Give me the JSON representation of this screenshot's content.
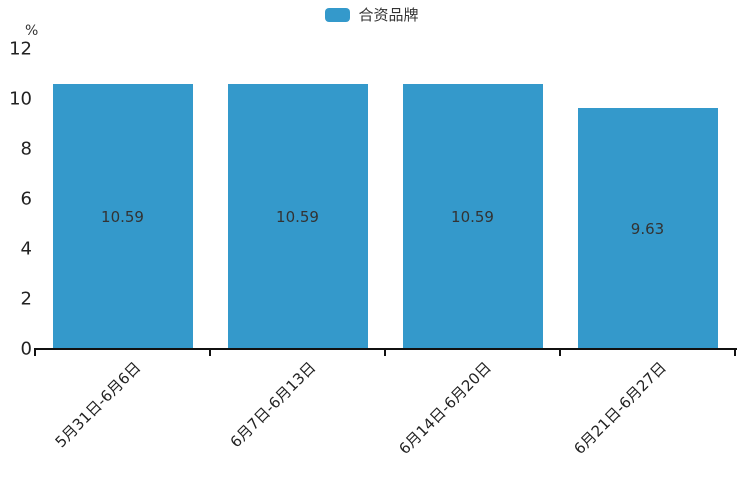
{
  "legend": {
    "items": [
      {
        "label": "合资品牌",
        "color": "#3499cb"
      }
    ],
    "position": "top-center"
  },
  "chart_data": {
    "type": "bar",
    "series_name": "合资品牌",
    "categories": [
      "5月31日-6月6日",
      "6月7日-6月13日",
      "6月14日-6月20日",
      "6月21日-6月27日"
    ],
    "values": [
      10.59,
      10.59,
      10.59,
      9.63
    ],
    "value_labels": [
      "10.59",
      "10.59",
      "10.59",
      "9.63"
    ],
    "title": "",
    "xlabel": "",
    "ylabel": "%",
    "ylim": [
      0,
      12
    ],
    "yticks": [
      0,
      2,
      4,
      6,
      8,
      10,
      12
    ],
    "grid": false,
    "legend_position": "top-center",
    "bar_color": "#3499cb",
    "value_label_color": "#333333",
    "axis_color": "#111111",
    "tick_label_color": "#222222",
    "x_tick_alignment": "between-categories",
    "x_label_rotation_deg": 45
  }
}
